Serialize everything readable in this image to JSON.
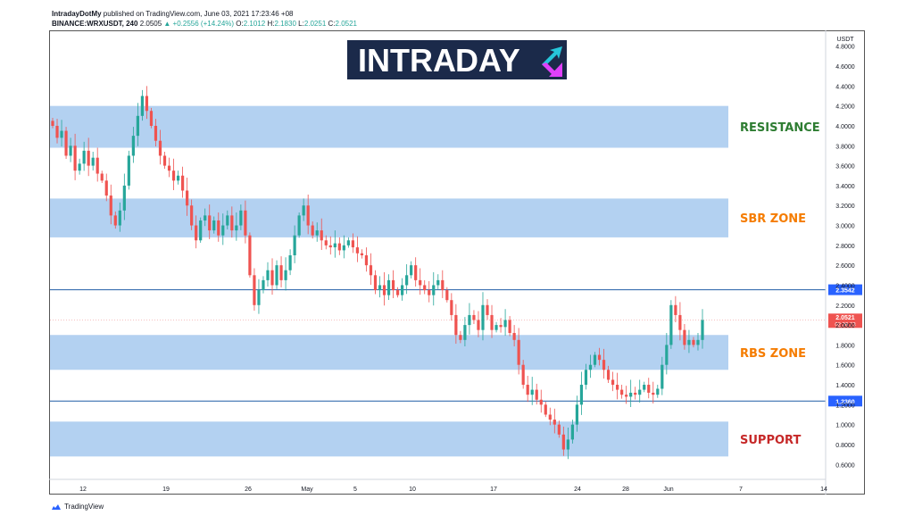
{
  "header": {
    "author": "IntradayDotMy",
    "published_text": "published on TradingView.com, June 03, 2021 17:23:46 +08",
    "symbol": "BINANCE:WRXUSDT, 240",
    "price": "2.0505",
    "change": "▲ +0.2556 (+14.24%)",
    "o_label": "O:",
    "o_value": "2.1012",
    "h_label": "H:",
    "h_value": "2.1830",
    "l_label": "L:",
    "l_value": "2.0251",
    "c_label": "C:",
    "c_value": "2.0521"
  },
  "logo": {
    "text_left": "INTRA",
    "text_right": "DAY"
  },
  "footer": {
    "brand": "TradingView"
  },
  "colors": {
    "up": "#26a69a",
    "down": "#ef5350",
    "zone_fill": "#a6c9ee",
    "hline": "#2962ff",
    "resistance_text": "#2e7d32",
    "zone_text_orange": "#f57c00",
    "support_text": "#c62828",
    "logo_bg": "#1b2a4a"
  },
  "chart_data": {
    "type": "candlestick",
    "axis_unit": "USDT",
    "ylim": [
      0.45,
      4.95
    ],
    "y_ticks": [
      "4.8000",
      "4.6000",
      "4.4000",
      "4.2000",
      "4.0000",
      "3.8000",
      "3.6000",
      "3.4000",
      "3.2000",
      "3.0000",
      "2.8000",
      "2.6000",
      "2.4000",
      "2.2000",
      "2.0000",
      "1.8000",
      "1.6000",
      "1.4000",
      "1.2000",
      "1.0000",
      "0.8000",
      "0.6000"
    ],
    "x_ticks": [
      "12",
      "19",
      "26",
      "May",
      "5",
      "10",
      "17",
      "24",
      "28",
      "Jun",
      "7",
      "14"
    ],
    "zones": [
      {
        "label": "RESISTANCE",
        "low": 3.78,
        "high": 4.2,
        "color": "#2e7d32"
      },
      {
        "label": "SBR ZONE",
        "low": 2.88,
        "high": 3.27,
        "color": "#f57c00"
      },
      {
        "label": "RBS ZONE",
        "low": 1.55,
        "high": 1.9,
        "color": "#f57c00"
      },
      {
        "label": "SUPPORT",
        "low": 0.68,
        "high": 1.03,
        "color": "#c62828"
      }
    ],
    "lines": [
      {
        "value": 2.3542,
        "label": "2.3542"
      },
      {
        "value": 1.236,
        "label": "1.2360"
      }
    ],
    "last_price": {
      "value": 2.0521,
      "label": "2.0521",
      "countdown": "02:36:23"
    },
    "closes": [
      4.0,
      3.88,
      3.95,
      3.7,
      3.8,
      3.55,
      3.62,
      3.75,
      3.6,
      3.68,
      3.52,
      3.45,
      3.3,
      3.1,
      3.0,
      3.15,
      3.4,
      3.7,
      3.9,
      4.1,
      4.3,
      4.15,
      4.0,
      3.85,
      3.7,
      3.6,
      3.55,
      3.45,
      3.5,
      3.35,
      3.2,
      3.0,
      2.85,
      3.05,
      3.1,
      2.95,
      3.05,
      2.9,
      3.0,
      3.1,
      2.95,
      3.0,
      3.15,
      2.9,
      2.5,
      2.2,
      2.35,
      2.45,
      2.55,
      2.4,
      2.6,
      2.45,
      2.55,
      2.7,
      2.9,
      3.1,
      3.2,
      3.0,
      2.9,
      2.95,
      2.85,
      2.8,
      2.78,
      2.82,
      2.75,
      2.8,
      2.85,
      2.78,
      2.72,
      2.7,
      2.6,
      2.5,
      2.35,
      2.4,
      2.3,
      2.45,
      2.35,
      2.3,
      2.4,
      2.5,
      2.6,
      2.45,
      2.4,
      2.35,
      2.3,
      2.4,
      2.45,
      2.35,
      2.25,
      2.1,
      1.9,
      1.85,
      2.0,
      2.1,
      2.05,
      1.95,
      2.2,
      2.1,
      1.95,
      2.0,
      1.98,
      2.05,
      1.92,
      1.85,
      1.6,
      1.4,
      1.3,
      1.35,
      1.25,
      1.2,
      1.1,
      1.05,
      1.0,
      0.9,
      0.75,
      0.85,
      1.0,
      1.2,
      1.4,
      1.55,
      1.6,
      1.7,
      1.65,
      1.55,
      1.45,
      1.4,
      1.35,
      1.3,
      1.28,
      1.32,
      1.3,
      1.35,
      1.4,
      1.32,
      1.3,
      1.36,
      1.6,
      1.8,
      2.2,
      2.1,
      1.95,
      1.8,
      1.85,
      1.8,
      1.85,
      2.05
    ]
  }
}
